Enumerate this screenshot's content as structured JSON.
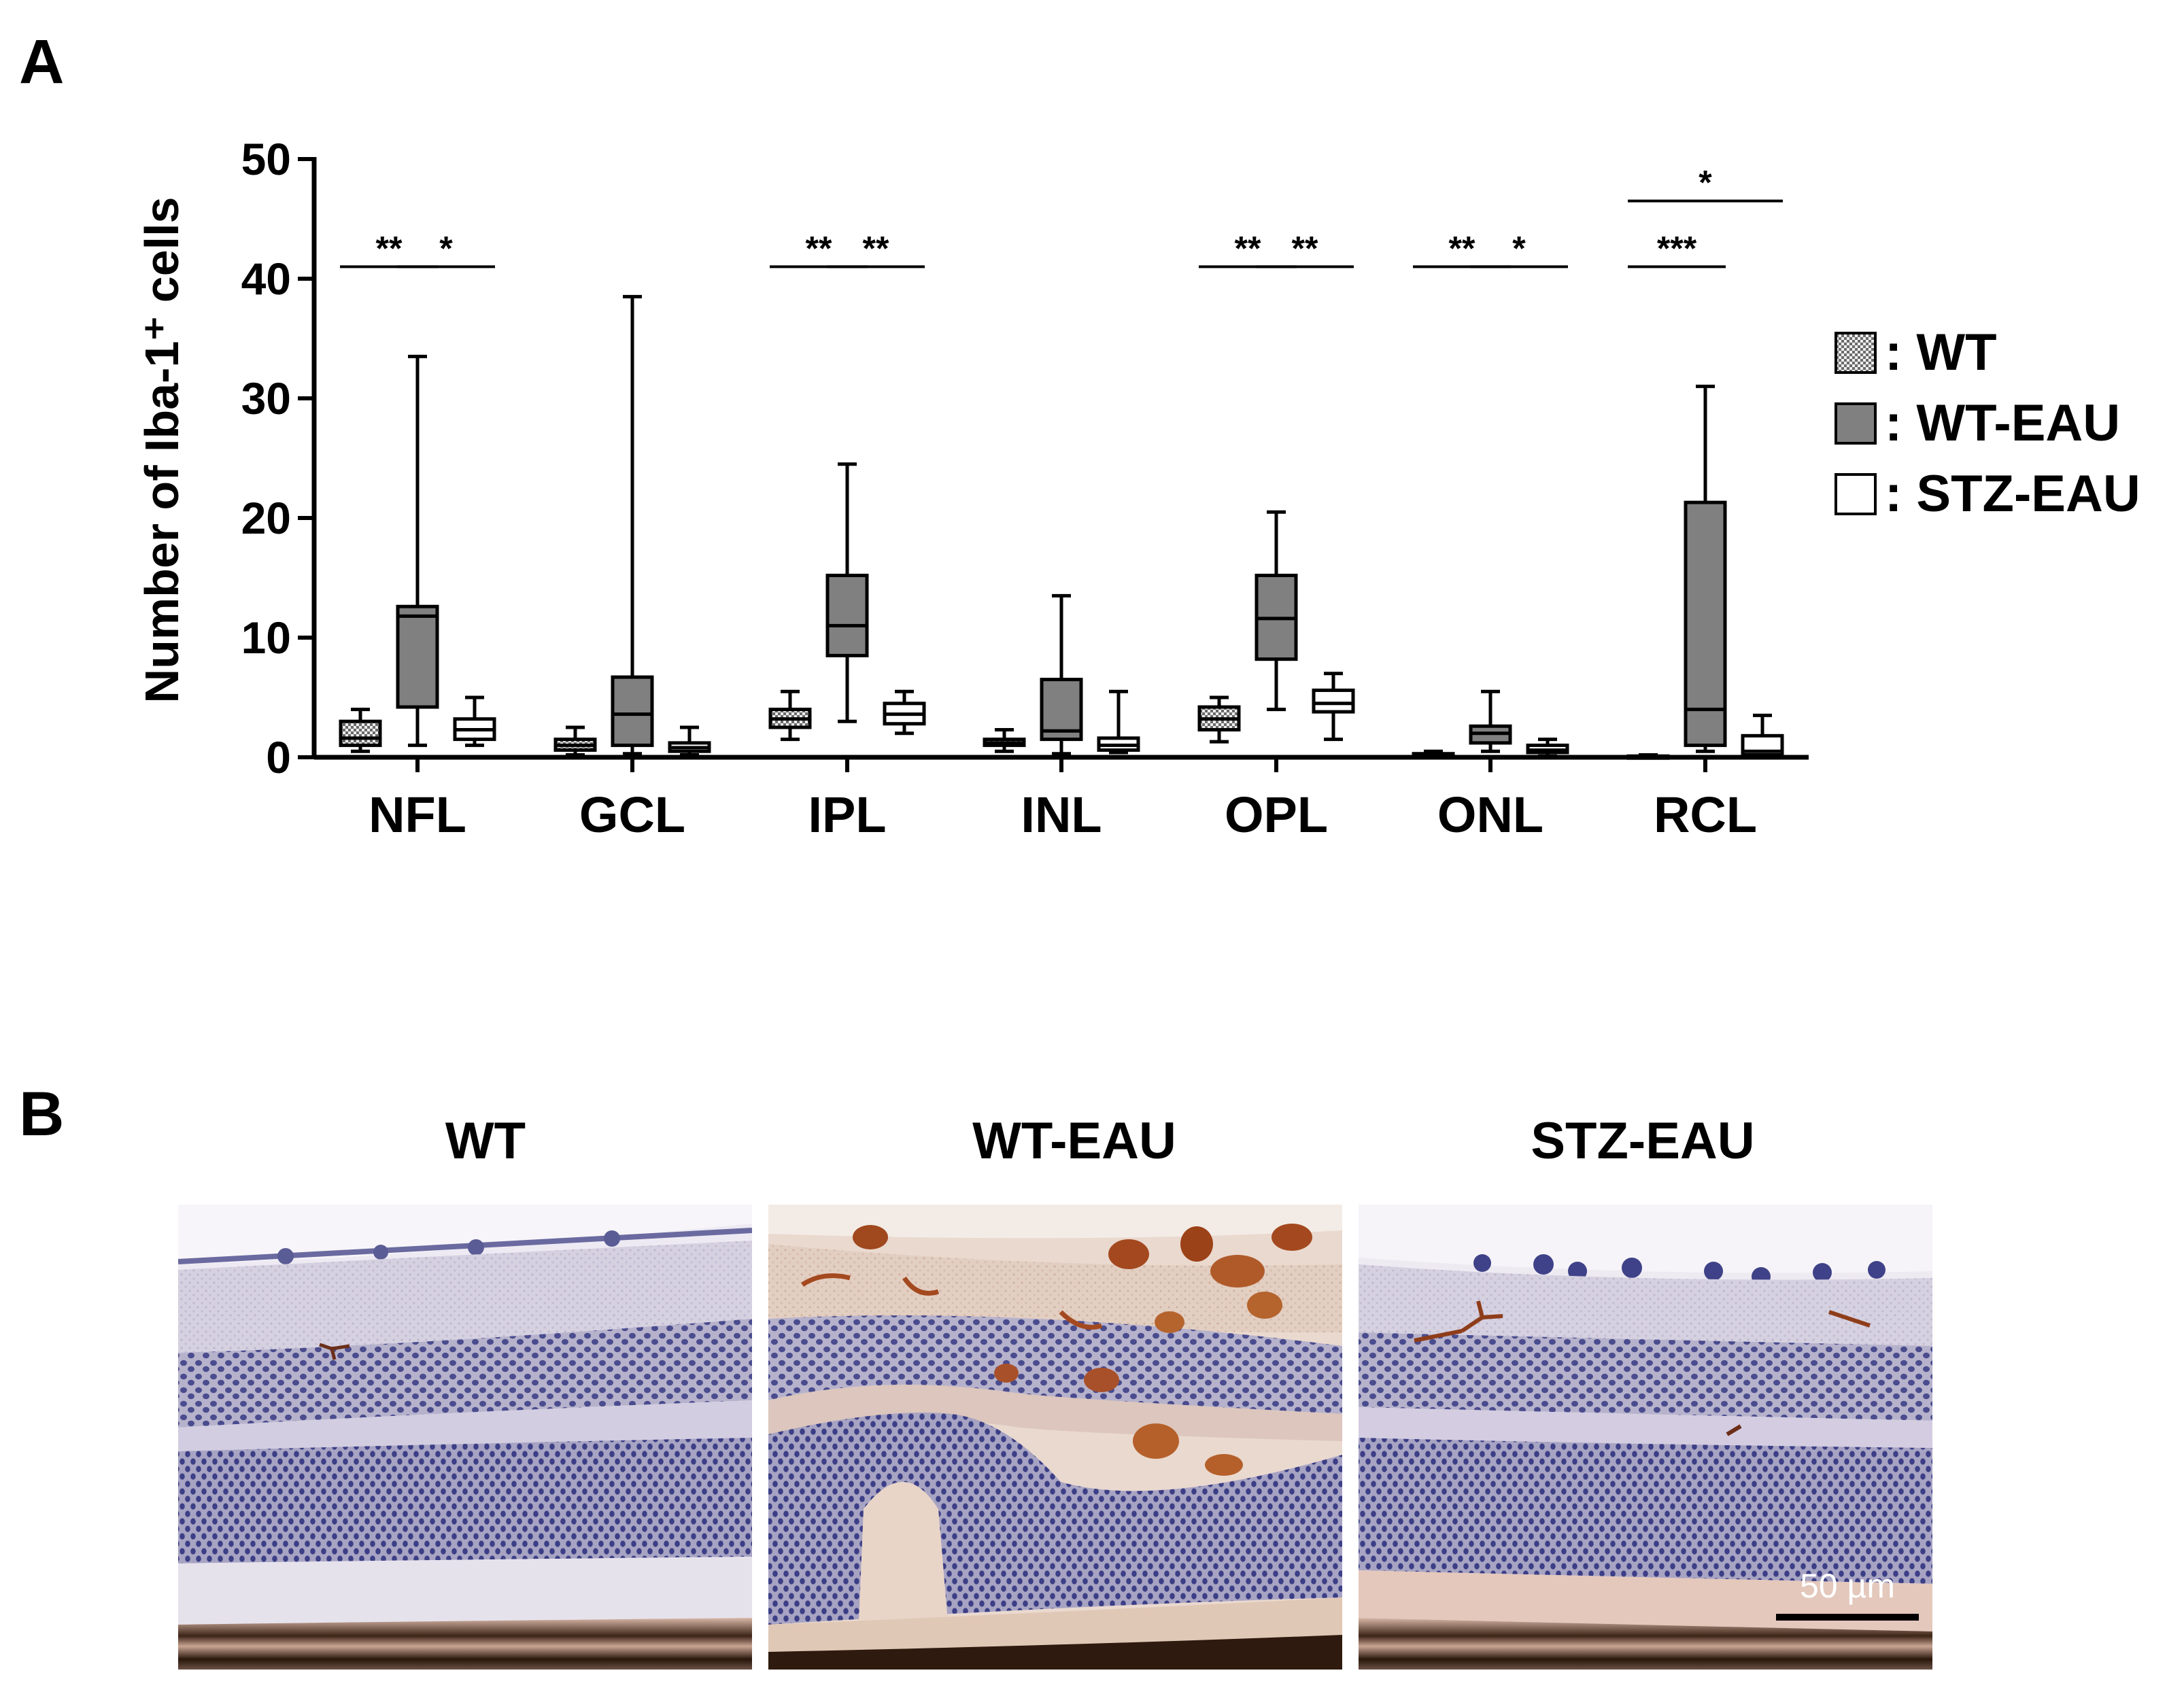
{
  "panel_a_label": "A",
  "panel_b_label": "B",
  "chart_data": {
    "type": "boxplot",
    "ylabel": "Number of Iba-1⁺ cells",
    "ylim": [
      0,
      50
    ],
    "yticks": [
      0,
      10,
      20,
      30,
      40,
      50
    ],
    "categories": [
      "NFL",
      "GCL",
      "IPL",
      "INL",
      "OPL",
      "ONL",
      "RCL"
    ],
    "series": [
      {
        "name": "WT",
        "fill": "checker",
        "boxes": [
          {
            "min": 0.5,
            "q1": 1.0,
            "median": 1.6,
            "q3": 3.0,
            "max": 4.0
          },
          {
            "min": 0.2,
            "q1": 0.6,
            "median": 1.0,
            "q3": 1.5,
            "max": 2.5
          },
          {
            "min": 1.5,
            "q1": 2.5,
            "median": 3.2,
            "q3": 4.0,
            "max": 5.5
          },
          {
            "min": 0.5,
            "q1": 1.0,
            "median": 1.2,
            "q3": 1.5,
            "max": 2.3
          },
          {
            "min": 1.3,
            "q1": 2.3,
            "median": 3.2,
            "q3": 4.2,
            "max": 5.0
          },
          {
            "min": 0.0,
            "q1": 0.05,
            "median": 0.15,
            "q3": 0.3,
            "max": 0.5
          },
          {
            "min": 0.0,
            "q1": 0.0,
            "median": 0.05,
            "q3": 0.1,
            "max": 0.2
          }
        ]
      },
      {
        "name": "WT-EAU",
        "fill": "#808080",
        "boxes": [
          {
            "min": 1.0,
            "q1": 4.2,
            "median": 11.8,
            "q3": 12.6,
            "max": 33.5
          },
          {
            "min": 0.3,
            "q1": 1.0,
            "median": 3.6,
            "q3": 6.7,
            "max": 38.5
          },
          {
            "min": 3.0,
            "q1": 8.5,
            "median": 11.0,
            "q3": 15.2,
            "max": 24.5
          },
          {
            "min": 0.3,
            "q1": 1.5,
            "median": 2.2,
            "q3": 6.5,
            "max": 13.5
          },
          {
            "min": 4.0,
            "q1": 8.2,
            "median": 11.6,
            "q3": 15.2,
            "max": 20.5
          },
          {
            "min": 0.5,
            "q1": 1.2,
            "median": 2.0,
            "q3": 2.6,
            "max": 5.5
          },
          {
            "min": 0.5,
            "q1": 1.0,
            "median": 4.0,
            "q3": 21.3,
            "max": 31.0
          }
        ]
      },
      {
        "name": "STZ-EAU",
        "fill": "#ffffff",
        "boxes": [
          {
            "min": 1.0,
            "q1": 1.5,
            "median": 2.3,
            "q3": 3.2,
            "max": 5.0
          },
          {
            "min": 0.2,
            "q1": 0.5,
            "median": 0.8,
            "q3": 1.2,
            "max": 2.5
          },
          {
            "min": 2.0,
            "q1": 2.8,
            "median": 3.6,
            "q3": 4.5,
            "max": 5.5
          },
          {
            "min": 0.4,
            "q1": 0.6,
            "median": 1.0,
            "q3": 1.6,
            "max": 5.5
          },
          {
            "min": 1.5,
            "q1": 3.8,
            "median": 4.5,
            "q3": 5.6,
            "max": 7.0
          },
          {
            "min": 0.1,
            "q1": 0.4,
            "median": 0.6,
            "q3": 1.0,
            "max": 1.5
          },
          {
            "min": 0.0,
            "q1": 0.2,
            "median": 0.5,
            "q3": 1.8,
            "max": 3.5
          }
        ]
      }
    ],
    "significance": [
      {
        "category": "NFL",
        "from": "WT",
        "to": "WT-EAU",
        "label": "**",
        "y": 41
      },
      {
        "category": "NFL",
        "from": "WT-EAU",
        "to": "STZ-EAU",
        "label": "*",
        "y": 41
      },
      {
        "category": "IPL",
        "from": "WT",
        "to": "WT-EAU",
        "label": "**",
        "y": 41
      },
      {
        "category": "IPL",
        "from": "WT-EAU",
        "to": "STZ-EAU",
        "label": "**",
        "y": 41
      },
      {
        "category": "OPL",
        "from": "WT",
        "to": "WT-EAU",
        "label": "**",
        "y": 41
      },
      {
        "category": "OPL",
        "from": "WT-EAU",
        "to": "STZ-EAU",
        "label": "**",
        "y": 41
      },
      {
        "category": "ONL",
        "from": "WT",
        "to": "WT-EAU",
        "label": "**",
        "y": 41
      },
      {
        "category": "ONL",
        "from": "WT-EAU",
        "to": "STZ-EAU",
        "label": "*",
        "y": 41
      },
      {
        "category": "RCL",
        "from": "WT",
        "to": "WT-EAU",
        "label": "***",
        "y": 41
      },
      {
        "category": "RCL",
        "from": "WT",
        "to": "STZ-EAU",
        "label": "*",
        "y": 46.5
      }
    ],
    "legend_position": "right",
    "legend": [
      {
        "label": ": WT",
        "fill": "checker"
      },
      {
        "label": ": WT-EAU",
        "fill": "#808080"
      },
      {
        "label": ": STZ-EAU",
        "fill": "#ffffff"
      }
    ]
  },
  "micrographs": {
    "titles": [
      "WT",
      "WT-EAU",
      "STZ-EAU"
    ],
    "scale_bar_label": "50 µm"
  }
}
